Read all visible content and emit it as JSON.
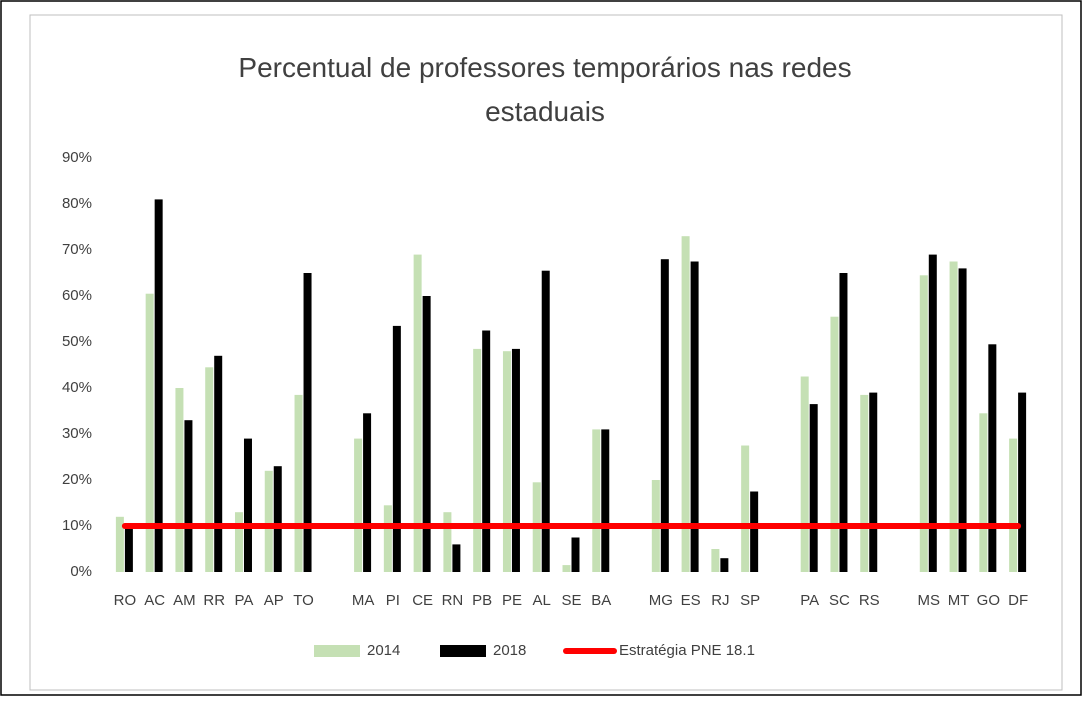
{
  "chart_data": {
    "type": "bar",
    "title": "Percentual de professores temporários nas redes estaduais",
    "categories": [
      "RO",
      "AC",
      "AM",
      "RR",
      "PA",
      "AP",
      "TO",
      null,
      "MA",
      "PI",
      "CE",
      "RN",
      "PB",
      "PE",
      "AL",
      "SE",
      "BA",
      null,
      "MG",
      "ES",
      "RJ",
      "SP",
      null,
      "PA",
      "SC",
      "RS",
      null,
      "MS",
      "MT",
      "GO",
      "DF"
    ],
    "series": [
      {
        "name": "2014",
        "color": "#c5e0b4",
        "values": [
          12,
          60.5,
          40,
          44.5,
          13,
          22,
          38.5,
          null,
          29,
          14.5,
          69,
          13,
          48.5,
          48,
          19.5,
          1.5,
          31,
          null,
          20,
          73,
          5,
          27.5,
          null,
          42.5,
          55.5,
          38.5,
          null,
          64.5,
          67.5,
          34.5,
          29
        ]
      },
      {
        "name": "2018",
        "color": "#000000",
        "values": [
          10,
          81,
          33,
          47,
          29,
          23,
          65,
          null,
          34.5,
          53.5,
          60,
          6,
          52.5,
          48.5,
          65.5,
          7.5,
          31,
          null,
          68,
          67.5,
          3,
          17.5,
          null,
          36.5,
          65,
          39,
          null,
          69,
          66,
          49.5,
          39
        ]
      },
      {
        "name": "Estratégia PNE 18.1",
        "type": "line",
        "color": "#ff0000",
        "values": [
          10,
          10,
          10,
          10,
          10,
          10,
          10,
          10,
          10,
          10,
          10,
          10,
          10,
          10,
          10,
          10,
          10,
          10,
          10,
          10,
          10,
          10,
          10,
          10,
          10,
          10,
          10,
          10,
          10,
          10,
          10
        ]
      }
    ],
    "ylim": [
      0,
      90
    ],
    "yticks": [
      {
        "value": 0,
        "label": "0%"
      },
      {
        "value": 10,
        "label": "10%"
      },
      {
        "value": 20,
        "label": "20%"
      },
      {
        "value": 30,
        "label": "30%"
      },
      {
        "value": 40,
        "label": "40%"
      },
      {
        "value": 50,
        "label": "50%"
      },
      {
        "value": 60,
        "label": "60%"
      },
      {
        "value": 70,
        "label": "70%"
      },
      {
        "value": 80,
        "label": "80%"
      },
      {
        "value": 90,
        "label": "90%"
      }
    ],
    "grid": false,
    "legend": "bottom"
  }
}
